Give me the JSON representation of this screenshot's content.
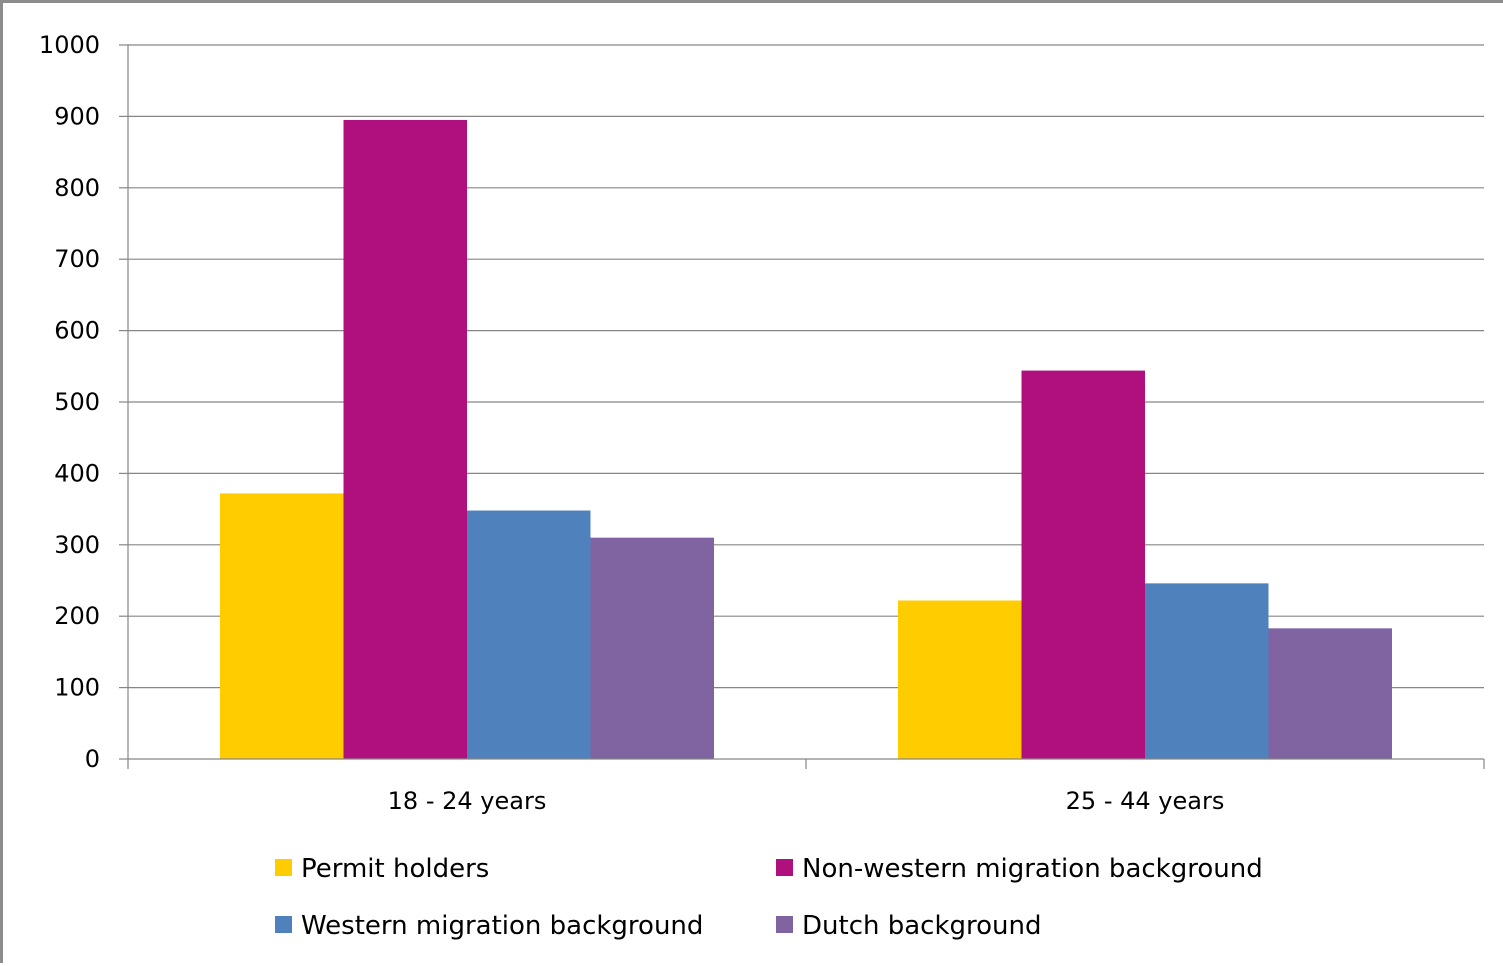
{
  "chart_data": {
    "type": "bar",
    "categories": [
      "18 - 24 years",
      "25 - 44 years"
    ],
    "series": [
      {
        "name": "Permit holders",
        "values": [
          372,
          222
        ],
        "color": "#FFCC00"
      },
      {
        "name": "Non-western migration background",
        "values": [
          895,
          544
        ],
        "color": "#B0107E"
      },
      {
        "name": "Western migration background",
        "values": [
          348,
          246
        ],
        "color": "#4F81BD"
      },
      {
        "name": "Dutch background",
        "values": [
          310,
          183
        ],
        "color": "#8064A2"
      }
    ],
    "yticks": [
      "0",
      "100",
      "200",
      "300",
      "400",
      "500",
      "600",
      "700",
      "800",
      "900",
      "1000"
    ],
    "ylim": [
      0,
      1000
    ],
    "title": "",
    "xlabel": "",
    "ylabel": "",
    "grid": true,
    "legend_position": "bottom"
  }
}
